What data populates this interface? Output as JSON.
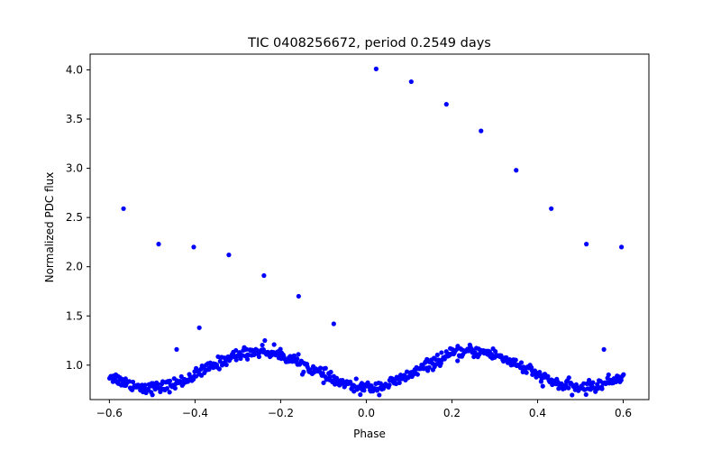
{
  "chart_data": {
    "type": "scatter",
    "title": "TIC 0408256672, period 0.2549 days",
    "xlabel": "Phase",
    "ylabel": "Normalized PDC flux",
    "xlim": [
      -0.645,
      0.66
    ],
    "ylim": [
      0.65,
      4.16
    ],
    "xticks": [
      -0.6,
      -0.4,
      -0.2,
      0.0,
      0.2,
      0.4,
      0.6
    ],
    "xtick_labels": [
      "−0.6",
      "−0.4",
      "−0.2",
      "0.0",
      "0.2",
      "0.4",
      "0.6"
    ],
    "yticks": [
      1.0,
      1.5,
      2.0,
      2.5,
      3.0,
      3.5,
      4.0
    ],
    "ytick_labels": [
      "1.0",
      "1.5",
      "2.0",
      "2.5",
      "3.0",
      "3.5",
      "4.0"
    ],
    "grid": false,
    "marker_color": "#0000ff",
    "outliers": [
      {
        "x": -0.567,
        "y": 2.59
      },
      {
        "x": -0.485,
        "y": 2.23
      },
      {
        "x": -0.403,
        "y": 2.2
      },
      {
        "x": -0.321,
        "y": 2.12
      },
      {
        "x": -0.239,
        "y": 1.91
      },
      {
        "x": -0.158,
        "y": 1.7
      },
      {
        "x": -0.076,
        "y": 1.42
      },
      {
        "x": -0.39,
        "y": 1.38
      },
      {
        "x": -0.443,
        "y": 1.16
      },
      {
        "x": 0.023,
        "y": 4.01
      },
      {
        "x": 0.105,
        "y": 3.88
      },
      {
        "x": 0.187,
        "y": 3.65
      },
      {
        "x": 0.268,
        "y": 3.38
      },
      {
        "x": 0.35,
        "y": 2.98
      },
      {
        "x": 0.432,
        "y": 2.59
      },
      {
        "x": 0.514,
        "y": 2.23
      },
      {
        "x": 0.596,
        "y": 2.2
      },
      {
        "x": -0.237,
        "y": 1.25
      },
      {
        "x": 0.555,
        "y": 1.16
      }
    ],
    "light_curve": {
      "phase_range": [
        -0.6,
        0.6
      ],
      "n_points": 620,
      "mean": 0.955,
      "semi_amplitude": 0.185,
      "minima_phase": [
        -0.5,
        0.0,
        0.5
      ],
      "maxima_phase": [
        -0.25,
        0.25
      ],
      "scatter": 0.03
    }
  }
}
